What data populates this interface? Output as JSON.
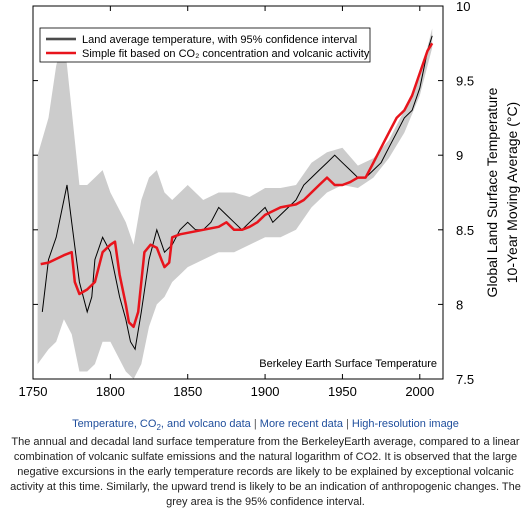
{
  "chart_data": {
    "type": "line",
    "x_range": [
      1750,
      2015
    ],
    "ylim": [
      7.5,
      10
    ],
    "xticks": [
      1750,
      1800,
      1850,
      1900,
      1950,
      2000
    ],
    "yticks": [
      7.5,
      8,
      8.5,
      9,
      9.5,
      10
    ],
    "xtick_labels": [
      "1750",
      "1800",
      "1850",
      "1900",
      "1950",
      "2000"
    ],
    "ytick_labels": [
      "7.5",
      "8",
      "8.5",
      "9",
      "9.5",
      "10"
    ],
    "ylabel_line1": "Global Land Surface Temperature",
    "ylabel_line2": "10-Year Moving Average (°C)",
    "watermark": "Berkeley Earth Surface Temperature",
    "legend_position": "top-left",
    "grid": false,
    "series": [
      {
        "name": "Land average temperature, with 95% confidence interval",
        "color": "#000000",
        "band_color": "#cccccc",
        "x": [
          1756,
          1760,
          1765,
          1770,
          1772,
          1775,
          1780,
          1785,
          1788,
          1790,
          1795,
          1800,
          1803,
          1806,
          1810,
          1813,
          1816,
          1820,
          1825,
          1830,
          1835,
          1840,
          1845,
          1850,
          1855,
          1860,
          1865,
          1870,
          1875,
          1880,
          1885,
          1890,
          1895,
          1900,
          1905,
          1910,
          1915,
          1920,
          1925,
          1930,
          1935,
          1940,
          1945,
          1950,
          1955,
          1960,
          1965,
          1970,
          1975,
          1980,
          1985,
          1990,
          1995,
          2000,
          2005,
          2008
        ],
        "values": [
          7.95,
          8.3,
          8.45,
          8.7,
          8.8,
          8.55,
          8.15,
          7.95,
          8.05,
          8.3,
          8.45,
          8.35,
          8.2,
          8.05,
          7.9,
          7.75,
          7.7,
          7.95,
          8.3,
          8.5,
          8.35,
          8.4,
          8.5,
          8.55,
          8.5,
          8.5,
          8.55,
          8.65,
          8.6,
          8.55,
          8.5,
          8.55,
          8.6,
          8.65,
          8.55,
          8.6,
          8.65,
          8.7,
          8.8,
          8.85,
          8.9,
          8.95,
          9.0,
          8.95,
          8.9,
          8.85,
          8.85,
          8.9,
          8.95,
          9.05,
          9.15,
          9.25,
          9.3,
          9.45,
          9.7,
          9.8
        ],
        "band_x": [
          1753,
          1760,
          1765,
          1770,
          1775,
          1780,
          1785,
          1790,
          1795,
          1800,
          1805,
          1810,
          1815,
          1820,
          1825,
          1830,
          1835,
          1840,
          1845,
          1850,
          1860,
          1870,
          1880,
          1890,
          1900,
          1910,
          1920,
          1930,
          1940,
          1950,
          1960,
          1970,
          1980,
          1990,
          2000,
          2008
        ],
        "band_upper": [
          9.0,
          9.25,
          9.6,
          9.8,
          9.3,
          8.8,
          8.8,
          8.85,
          8.9,
          8.75,
          8.65,
          8.55,
          8.4,
          8.7,
          8.85,
          8.9,
          8.75,
          8.7,
          8.75,
          8.8,
          8.7,
          8.75,
          8.75,
          8.72,
          8.78,
          8.78,
          8.8,
          8.95,
          9.02,
          9.05,
          8.93,
          8.98,
          9.1,
          9.3,
          9.52,
          9.85
        ],
        "band_lower": [
          7.6,
          7.7,
          7.75,
          7.9,
          7.8,
          7.55,
          7.55,
          7.6,
          7.75,
          7.75,
          7.65,
          7.55,
          7.5,
          7.6,
          7.85,
          8.0,
          8.05,
          8.15,
          8.2,
          8.25,
          8.3,
          8.35,
          8.35,
          8.4,
          8.45,
          8.45,
          8.5,
          8.65,
          8.75,
          8.8,
          8.78,
          8.85,
          8.98,
          9.15,
          9.4,
          9.72
        ]
      },
      {
        "name": "Simple fit based on CO₂ concentration and volcanic activity",
        "color": "#e8141c",
        "x": [
          1755,
          1760,
          1770,
          1775,
          1777,
          1780,
          1785,
          1790,
          1795,
          1800,
          1803,
          1806,
          1810,
          1812,
          1815,
          1818,
          1822,
          1826,
          1830,
          1833,
          1835,
          1838,
          1840,
          1845,
          1850,
          1860,
          1870,
          1875,
          1880,
          1885,
          1890,
          1895,
          1900,
          1910,
          1920,
          1925,
          1930,
          1935,
          1940,
          1945,
          1950,
          1955,
          1960,
          1965,
          1970,
          1975,
          1980,
          1985,
          1990,
          1995,
          2000,
          2005,
          2008
        ],
        "values": [
          8.27,
          8.28,
          8.33,
          8.35,
          8.15,
          8.07,
          8.1,
          8.15,
          8.35,
          8.4,
          8.42,
          8.2,
          8.0,
          7.88,
          7.85,
          7.95,
          8.35,
          8.4,
          8.38,
          8.3,
          8.25,
          8.28,
          8.45,
          8.47,
          8.48,
          8.5,
          8.52,
          8.55,
          8.5,
          8.5,
          8.52,
          8.55,
          8.6,
          8.65,
          8.67,
          8.7,
          8.75,
          8.8,
          8.85,
          8.8,
          8.8,
          8.82,
          8.85,
          8.85,
          8.95,
          9.05,
          9.15,
          9.25,
          9.3,
          9.4,
          9.55,
          9.7,
          9.75
        ]
      }
    ]
  },
  "caption": {
    "link1_before": "Temperature, CO",
    "link1_sub": "2",
    "link1_after": ", and volcano data",
    "separator": " | ",
    "link2": "More recent data",
    "link3": "High-resolution image",
    "text": "The annual and decadal land surface temperature from the BerkeleyEarth average, compared to a linear combination of volcanic sulfate emissions and the natural logarithm of CO2. It is observed that the large negative excursions in the early temperature records are likely to be explained by exceptional volcanic activity at this time. Similarly, the upward trend is likely to be an indication of anthropogenic changes. The grey area is the 95% confidence interval."
  }
}
